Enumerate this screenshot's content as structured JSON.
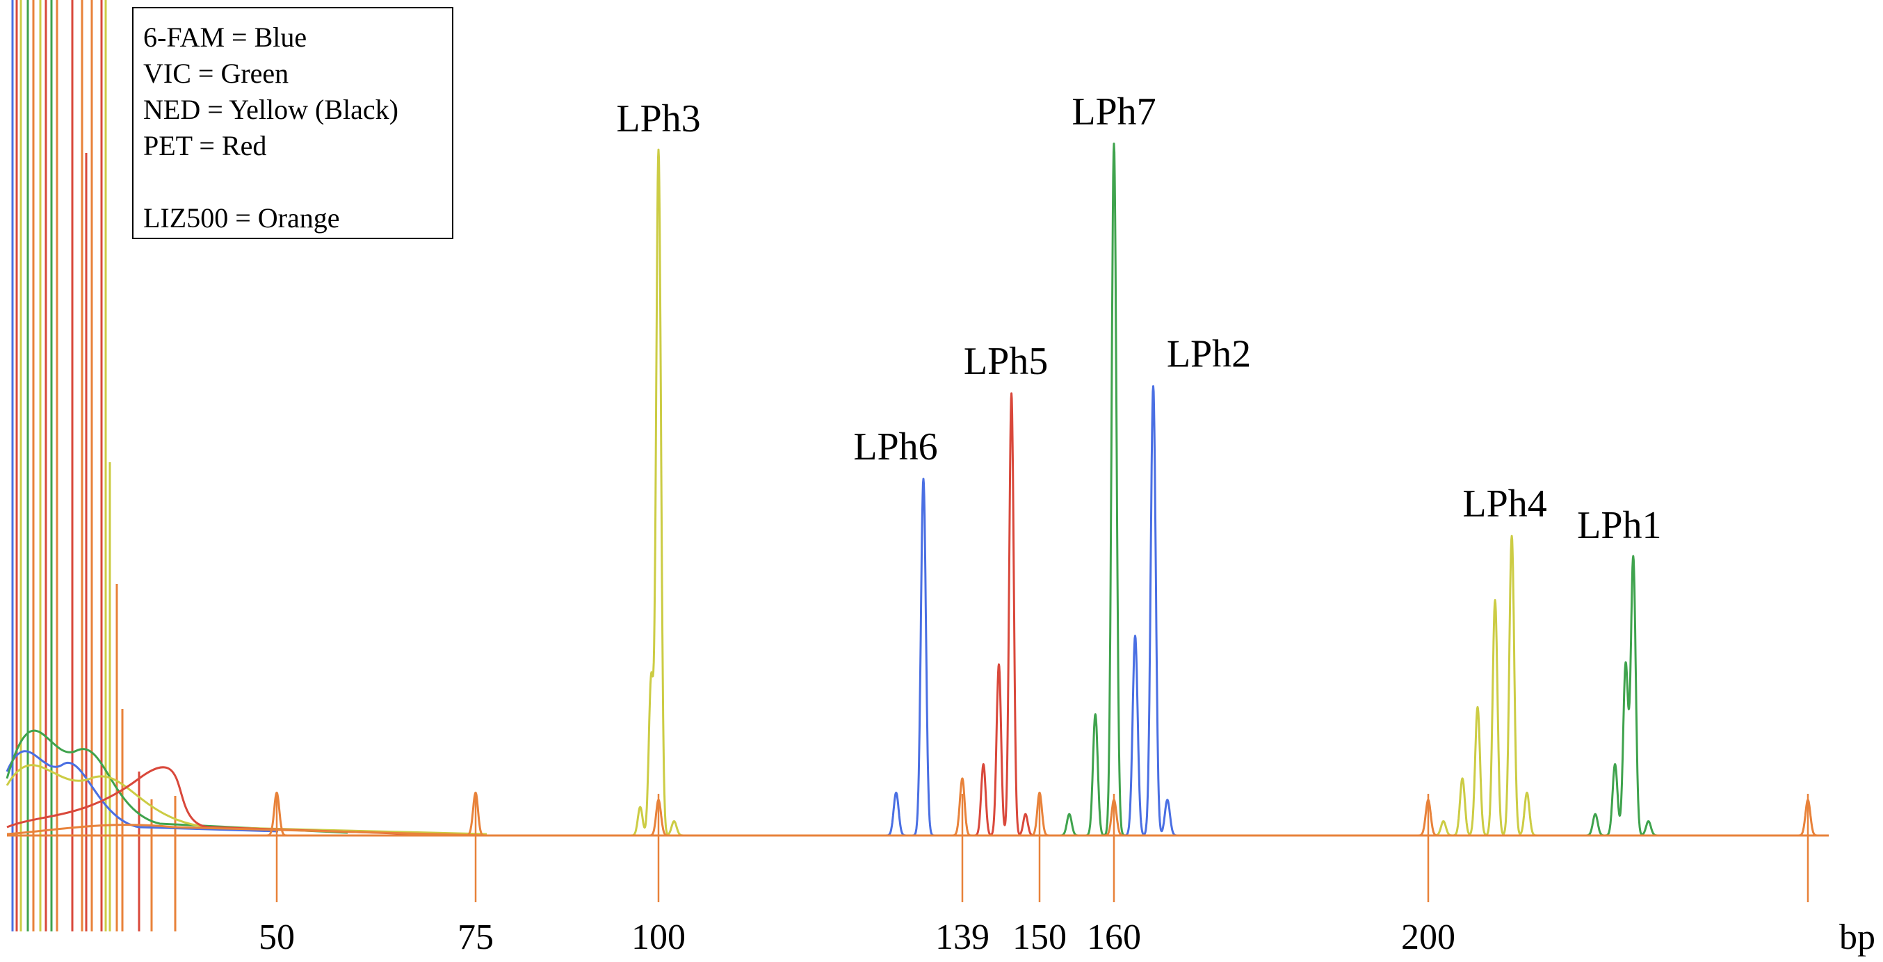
{
  "chart_data": {
    "type": "line",
    "title": "",
    "xlabel": "bp",
    "ylabel": "",
    "x_unit": "bp",
    "grid": false,
    "legend_position": "top-left",
    "x_ticks": [
      50,
      75,
      100,
      139,
      150,
      160,
      200
    ],
    "legend": {
      "entries": [
        "6-FAM = Blue",
        "VIC = Green",
        "NED = Yellow (Black)",
        "PET = Red",
        "LIZ500 = Orange"
      ]
    },
    "colors": {
      "6-FAM": "#4a6fe3",
      "VIC": "#3fa34d",
      "NED": "#cccc44",
      "PET": "#d9483b",
      "LIZ500": "#e8823a"
    },
    "peak_labels": [
      {
        "label": "LPh3",
        "x": 100,
        "dye": "NED",
        "height": 0.96
      },
      {
        "label": "LPh6",
        "x": 134,
        "dye": "6-FAM",
        "height": 0.5
      },
      {
        "label": "LPh5",
        "x": 146,
        "dye": "PET",
        "height": 0.62
      },
      {
        "label": "LPh7",
        "x": 160,
        "dye": "VIC",
        "height": 0.97
      },
      {
        "label": "LPh2",
        "x": 165,
        "dye": "6-FAM",
        "height": 0.63
      },
      {
        "label": "LPh4",
        "x": 211,
        "dye": "NED",
        "height": 0.42
      },
      {
        "label": "LPh1",
        "x": 227,
        "dye": "VIC",
        "height": 0.39
      }
    ],
    "series": [
      {
        "dye": "6-FAM",
        "peaks": [
          [
            130.5,
            0.06
          ],
          [
            134,
            0.5
          ],
          [
            162.7,
            0.28
          ],
          [
            165,
            0.63
          ],
          [
            166.8,
            0.05
          ]
        ]
      },
      {
        "dye": "VIC",
        "peaks": [
          [
            154,
            0.03
          ],
          [
            157.5,
            0.17
          ],
          [
            160,
            0.97
          ],
          [
            222,
            0.03
          ],
          [
            224.6,
            0.1
          ],
          [
            226,
            0.24
          ],
          [
            227,
            0.39
          ],
          [
            229,
            0.02
          ]
        ]
      },
      {
        "dye": "NED",
        "peaks": [
          [
            97.5,
            0.04
          ],
          [
            99,
            0.22
          ],
          [
            100,
            0.96
          ],
          [
            102,
            0.02
          ],
          [
            202,
            0.02
          ],
          [
            204.5,
            0.08
          ],
          [
            206.5,
            0.18
          ],
          [
            208.8,
            0.33
          ],
          [
            211,
            0.42
          ],
          [
            213,
            0.06
          ]
        ]
      },
      {
        "dye": "PET",
        "peaks": [
          [
            142,
            0.1
          ],
          [
            144.2,
            0.24
          ],
          [
            146,
            0.62
          ],
          [
            148,
            0.03
          ]
        ]
      },
      {
        "dye": "LIZ500",
        "peaks": [
          [
            50,
            0.06
          ],
          [
            75,
            0.06
          ],
          [
            100,
            0.05
          ],
          [
            139,
            0.08
          ],
          [
            150,
            0.06
          ],
          [
            160,
            0.05
          ],
          [
            200,
            0.05
          ],
          [
            250,
            0.05
          ]
        ]
      }
    ]
  }
}
